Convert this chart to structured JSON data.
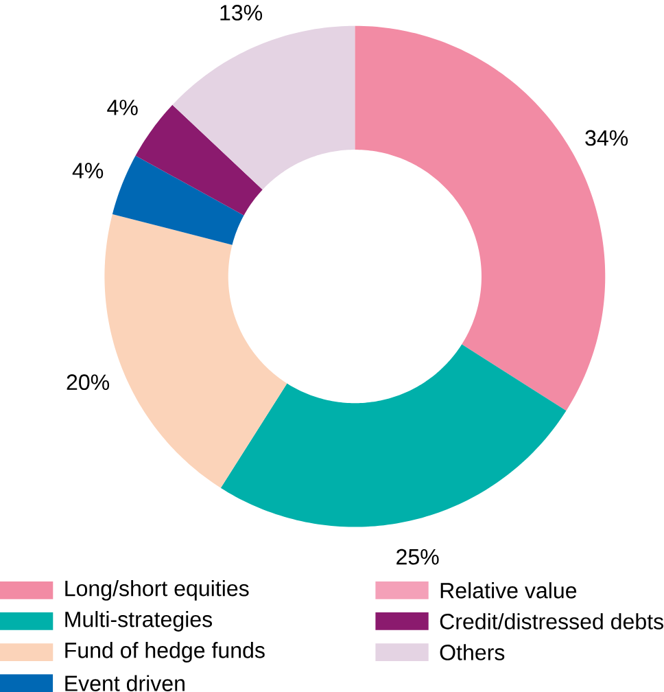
{
  "chart_data": {
    "type": "donut",
    "categories": [
      "Long/short equities",
      "Multi-strategies",
      "Fund of hedge funds",
      "Event driven",
      "Relative value",
      "Credit/distressed debts",
      "Others"
    ],
    "values": [
      34,
      25,
      20,
      4,
      0,
      4,
      13
    ],
    "value_labels": [
      "34%",
      "25%",
      "20%",
      "4%",
      null,
      "4%",
      "13%"
    ],
    "colors": [
      "#f28ba4",
      "#00b0aa",
      "#fbd3b9",
      "#0068b4",
      "#f4a0b8",
      "#8b1a6e",
      "#e4d3e3"
    ],
    "legend": "bottom"
  }
}
